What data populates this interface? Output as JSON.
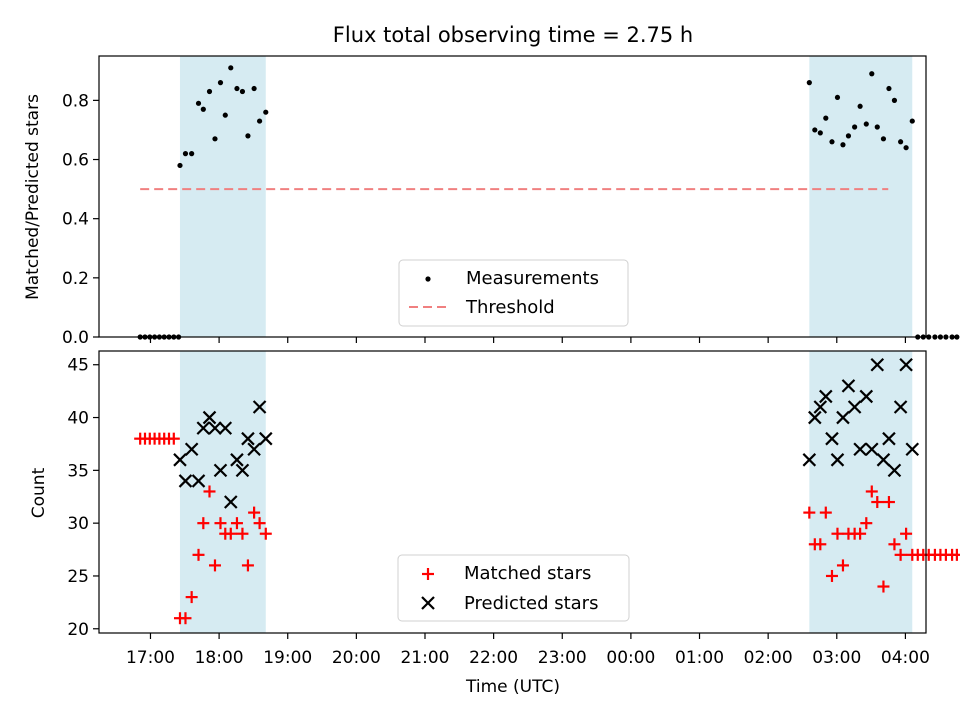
{
  "figure": {
    "title": "Flux total observing time = 2.75 h",
    "xlabel": "Time (UTC)",
    "x_tick_labels": [
      "17:00",
      "18:00",
      "19:00",
      "20:00",
      "21:00",
      "22:00",
      "23:00",
      "00:00",
      "01:00",
      "02:00",
      "03:00",
      "04:00"
    ]
  },
  "chart_data": [
    {
      "type": "scatter",
      "name": "ratio-panel",
      "ylabel": "Matched/Predicted stars",
      "xlim": [
        -0.75,
        11.3
      ],
      "ylim": [
        0,
        0.95
      ],
      "yticks": [
        0.0,
        0.2,
        0.4,
        0.6,
        0.8
      ],
      "y_tick_labels": [
        "0.0",
        "0.2",
        "0.4",
        "0.6",
        "0.8"
      ],
      "shaded_intervals": [
        [
          0.43,
          1.68
        ],
        [
          9.6,
          11.1
        ]
      ],
      "threshold": {
        "value": 0.5,
        "x_start": -0.15,
        "x_end": 10.75,
        "color": "#f08080"
      },
      "legend_position": "lower center",
      "series": [
        {
          "name": "Measurements",
          "color": "#000000",
          "x": [
            -0.15,
            -0.08,
            -0.01,
            0.06,
            0.13,
            0.2,
            0.27,
            0.34,
            0.41,
            0.43,
            0.51,
            0.6,
            0.7,
            0.77,
            0.86,
            0.94,
            1.02,
            1.09,
            1.17,
            1.26,
            1.34,
            1.42,
            1.51,
            1.59,
            1.68,
            9.6,
            9.68,
            9.76,
            9.84,
            9.93,
            10.01,
            10.09,
            10.17,
            10.26,
            10.34,
            10.43,
            10.51,
            10.59,
            10.68,
            10.76,
            10.84,
            10.93,
            11.01,
            11.1,
            11.18,
            11.26,
            11.34,
            11.43,
            11.51,
            11.59,
            11.68,
            11.75
          ],
          "y": [
            0,
            0,
            0,
            0,
            0,
            0,
            0,
            0,
            0,
            0.58,
            0.62,
            0.62,
            0.79,
            0.77,
            0.83,
            0.67,
            0.86,
            0.75,
            0.91,
            0.84,
            0.83,
            0.68,
            0.84,
            0.73,
            0.76,
            0.86,
            0.7,
            0.69,
            0.74,
            0.66,
            0.81,
            0.65,
            0.68,
            0.71,
            0.78,
            0.72,
            0.89,
            0.71,
            0.67,
            0.84,
            0.8,
            0.66,
            0.64,
            0.73,
            0,
            0,
            0,
            0,
            0,
            0,
            0,
            0
          ]
        }
      ]
    },
    {
      "type": "scatter",
      "name": "count-panel",
      "ylabel": "Count",
      "xlim": [
        -0.75,
        11.3
      ],
      "ylim": [
        19.6,
        46.3
      ],
      "yticks": [
        20,
        25,
        30,
        35,
        40,
        45
      ],
      "y_tick_labels": [
        "20",
        "25",
        "30",
        "35",
        "40",
        "45"
      ],
      "shaded_intervals": [
        [
          0.43,
          1.68
        ],
        [
          9.6,
          11.1
        ]
      ],
      "legend_position": "lower center",
      "series": [
        {
          "name": "Matched stars",
          "color": "#ff0000",
          "marker": "+",
          "x": [
            -0.15,
            -0.08,
            -0.01,
            0.06,
            0.13,
            0.2,
            0.27,
            0.34,
            0.43,
            0.51,
            0.6,
            0.7,
            0.77,
            0.86,
            0.94,
            1.02,
            1.09,
            1.17,
            1.26,
            1.34,
            1.42,
            1.51,
            1.59,
            1.68,
            9.6,
            9.68,
            9.76,
            9.84,
            9.93,
            10.01,
            10.09,
            10.17,
            10.26,
            10.34,
            10.43,
            10.51,
            10.59,
            10.68,
            10.76,
            10.84,
            10.93,
            11.01,
            11.1,
            11.18,
            11.26,
            11.34,
            11.43,
            11.51,
            11.59,
            11.68,
            11.75
          ],
          "y": [
            38,
            38,
            38,
            38,
            38,
            38,
            38,
            38,
            21,
            21,
            23,
            27,
            30,
            33,
            26,
            30,
            29,
            29,
            30,
            29,
            26,
            31,
            30,
            29,
            31,
            28,
            28,
            31,
            25,
            29,
            26,
            29,
            29,
            29,
            30,
            33,
            32,
            24,
            32,
            28,
            27,
            29,
            27,
            27,
            27,
            27,
            27,
            27,
            27,
            27,
            27
          ]
        },
        {
          "name": "Predicted stars",
          "color": "#000000",
          "marker": "x",
          "x": [
            0.43,
            0.51,
            0.6,
            0.7,
            0.77,
            0.86,
            0.94,
            1.02,
            1.09,
            1.17,
            1.26,
            1.34,
            1.42,
            1.51,
            1.59,
            1.68,
            9.6,
            9.68,
            9.76,
            9.84,
            9.93,
            10.01,
            10.09,
            10.17,
            10.26,
            10.34,
            10.43,
            10.51,
            10.59,
            10.68,
            10.76,
            10.84,
            10.93,
            11.01,
            11.1
          ],
          "y": [
            36,
            34,
            37,
            34,
            39,
            40,
            39,
            35,
            39,
            32,
            36,
            35,
            38,
            37,
            41,
            38,
            36,
            40,
            41,
            42,
            38,
            36,
            40,
            43,
            41,
            37,
            42,
            37,
            45,
            36,
            38,
            35,
            41,
            45,
            37
          ]
        }
      ]
    }
  ]
}
